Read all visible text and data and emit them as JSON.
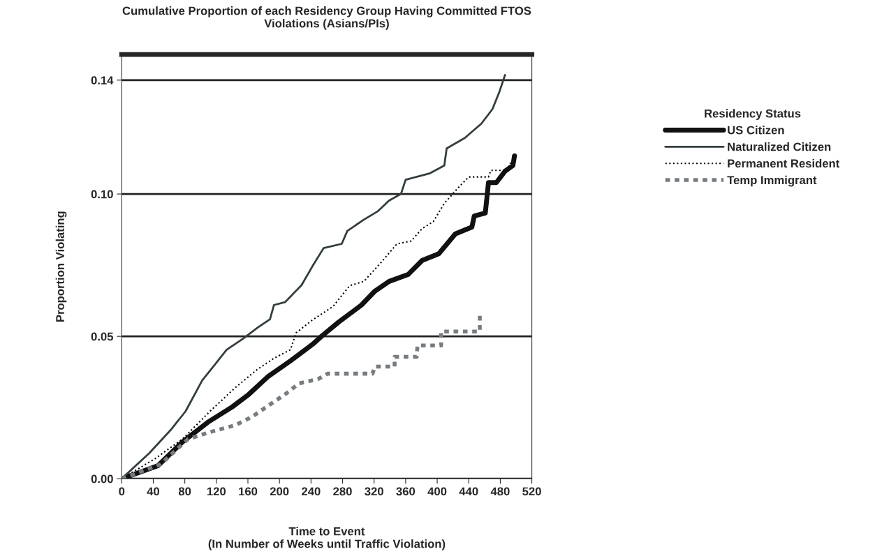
{
  "chart_data": {
    "type": "line",
    "title": "Cumulative Proportion of each Residency Group Having Committed FTOS\nViolations (Asians/PIs)",
    "xlabel": "Time to Event\n(In Number of Weeks until Traffic Violation)",
    "ylabel": "Proportion Violating",
    "legend_title": "Residency Status",
    "legend": "right",
    "grid": "y",
    "xlim": [
      0,
      520
    ],
    "xticks": [
      0,
      40,
      80,
      120,
      160,
      200,
      240,
      280,
      320,
      360,
      400,
      440,
      480,
      520
    ],
    "ylim": [
      0,
      0.149
    ],
    "yticks": [
      {
        "value": 0,
        "label": "0.00"
      },
      {
        "value": 0.05,
        "label": "0.05"
      },
      {
        "value": 0.1,
        "label": "0.10"
      },
      {
        "value": 0.14,
        "label": "0.14"
      }
    ],
    "series": [
      {
        "name": "US Citizen",
        "color": "#111111",
        "line_style": "solid",
        "x": [
          0,
          46,
          77,
          109,
          140,
          161,
          186,
          214,
          242,
          254,
          275,
          304,
          321,
          339,
          363,
          381,
          402,
          423,
          444,
          447,
          461,
          465,
          475,
          486,
          496,
          498
        ],
        "values": [
          0,
          0.0046,
          0.0129,
          0.0198,
          0.0252,
          0.0296,
          0.036,
          0.0414,
          0.0472,
          0.0502,
          0.055,
          0.061,
          0.0659,
          0.0693,
          0.0717,
          0.0767,
          0.079,
          0.086,
          0.0884,
          0.0923,
          0.0933,
          0.104,
          0.104,
          0.108,
          0.11,
          0.1134
        ]
      },
      {
        "name": "Naturalized Citizen",
        "color": "#333d40",
        "line_style": "solid",
        "x": [
          0,
          35,
          63,
          81,
          102,
          119,
          133,
          154,
          172,
          188,
          193,
          207,
          228,
          242,
          256,
          279,
          286,
          307,
          325,
          339,
          354,
          360,
          391,
          409,
          412,
          435,
          456,
          470,
          479,
          486
        ],
        "values": [
          0,
          0.009,
          0.0174,
          0.0237,
          0.0345,
          0.0404,
          0.0453,
          0.0492,
          0.053,
          0.056,
          0.061,
          0.062,
          0.068,
          0.0747,
          0.081,
          0.0825,
          0.087,
          0.091,
          0.094,
          0.0977,
          0.1,
          0.105,
          0.1073,
          0.11,
          0.116,
          0.1197,
          0.1247,
          0.1298,
          0.136,
          0.1418
        ]
      },
      {
        "name": "Permanent Resident",
        "color": "#000000",
        "line_style": "dotted",
        "x": [
          0,
          42,
          77,
          112,
          144,
          172,
          193,
          214,
          221,
          241,
          268,
          289,
          307,
          328,
          349,
          367,
          381,
          395,
          409,
          426,
          440,
          465,
          468,
          489,
          493
        ],
        "values": [
          0,
          0.007,
          0.0139,
          0.0237,
          0.032,
          0.0384,
          0.0423,
          0.0453,
          0.0512,
          0.0556,
          0.0605,
          0.0678,
          0.0693,
          0.0757,
          0.0825,
          0.0835,
          0.0879,
          0.0903,
          0.0967,
          0.102,
          0.106,
          0.106,
          0.1083,
          0.1083,
          0.111
        ]
      },
      {
        "name": "Temp Immigrant",
        "color": "#777c80",
        "line_style": "dashed",
        "x": [
          0,
          49,
          84,
          112,
          144,
          165,
          186,
          207,
          225,
          249,
          261,
          318,
          321,
          346,
          346,
          374,
          375,
          405,
          405,
          454,
          454
        ],
        "values": [
          0,
          0.005,
          0.0139,
          0.0164,
          0.0188,
          0.0217,
          0.0257,
          0.0296,
          0.0335,
          0.035,
          0.0369,
          0.0369,
          0.0394,
          0.0394,
          0.0428,
          0.0428,
          0.0468,
          0.0468,
          0.0517,
          0.0517,
          0.0585
        ]
      }
    ]
  }
}
